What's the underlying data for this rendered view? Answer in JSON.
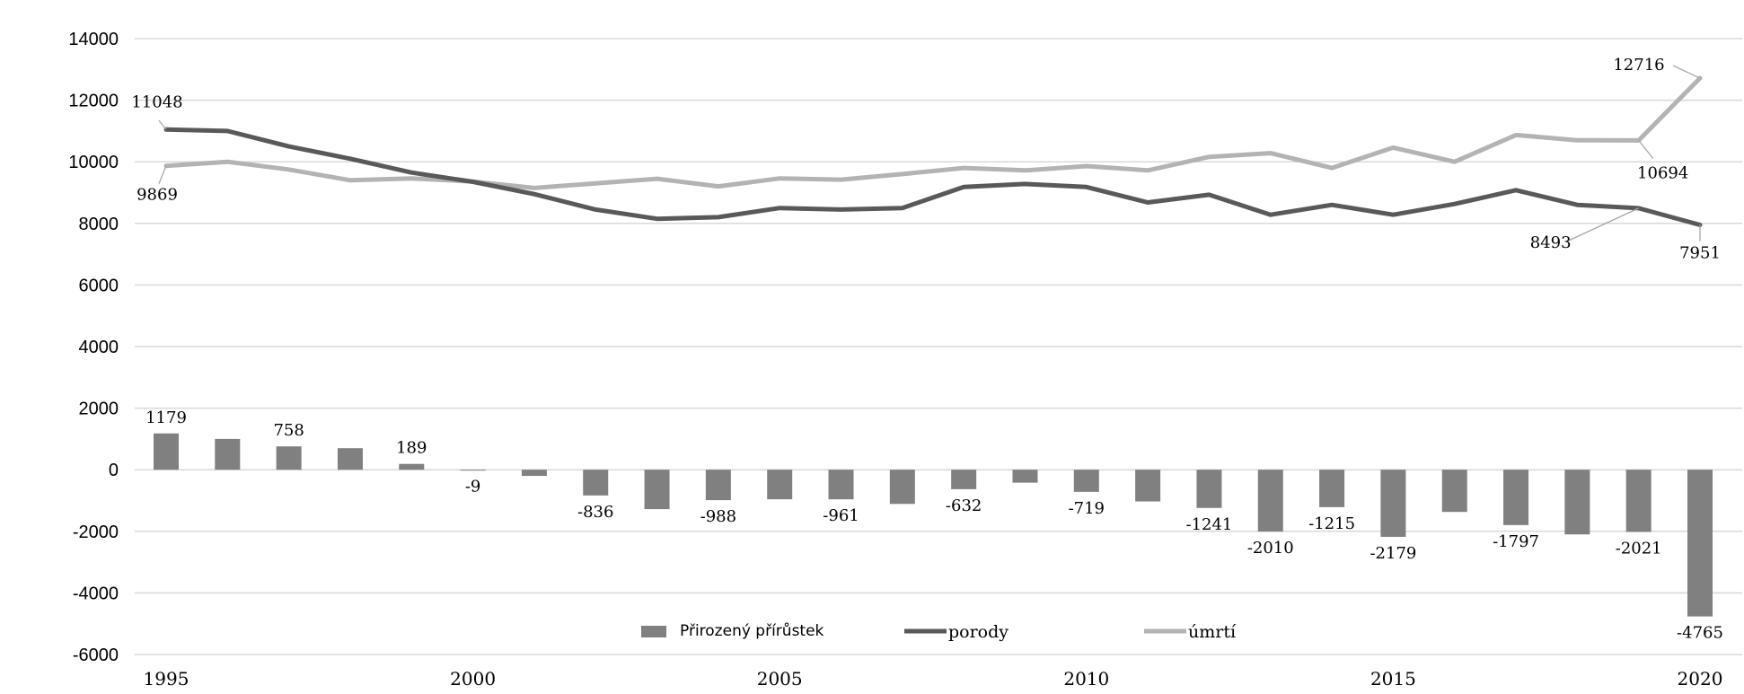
{
  "chart_data": {
    "type": "bar",
    "x": [
      1995,
      1996,
      1997,
      1998,
      1999,
      2000,
      2001,
      2002,
      2003,
      2004,
      2005,
      2006,
      2007,
      2008,
      2009,
      2010,
      2011,
      2012,
      2013,
      2014,
      2015,
      2016,
      2017,
      2018,
      2019,
      2020
    ],
    "x_tick_labels": [
      "1995",
      "2000",
      "2005",
      "2010",
      "2015",
      "2020"
    ],
    "ylim": [
      -6000,
      14000
    ],
    "y_ticks": [
      "14000",
      "12000",
      "10000",
      "8000",
      "6000",
      "4000",
      "2000",
      "0",
      "-2000",
      "-4000",
      "-6000"
    ],
    "grid": true,
    "legend_position": "bottom-center",
    "series": [
      {
        "name": "Přirozený přírůstek",
        "type": "bar",
        "color": "#808080",
        "values": [
          1179,
          1000,
          758,
          700,
          189,
          -9,
          -200,
          -836,
          -1280,
          -988,
          -960,
          -961,
          -1110,
          -632,
          -420,
          -719,
          -1030,
          -1241,
          -2010,
          -1215,
          -2179,
          -1370,
          -1797,
          -2100,
          -2021,
          -4765
        ],
        "data_labels": {
          "1995": "1179",
          "1997": "758",
          "1999": "189",
          "2000": "-9",
          "2002": "-836",
          "2004": "-988",
          "2006": "-961",
          "2008": "-632",
          "2010": "-719",
          "2012": "-1241",
          "2013": "-2010",
          "2014": "-1215",
          "2015": "-2179",
          "2017": "-1797",
          "2019": "-2021",
          "2020": "-4765"
        }
      },
      {
        "name": "porody",
        "type": "line",
        "color": "#595959",
        "values": [
          11048,
          11000,
          10500,
          10100,
          9650,
          9350,
          8950,
          8450,
          8150,
          8200,
          8500,
          8450,
          8500,
          9180,
          9280,
          9180,
          8680,
          8930,
          8280,
          8600,
          8280,
          8630,
          9080,
          8600,
          8493,
          7951
        ],
        "data_labels": {
          "1995": "11048",
          "2019": "8493",
          "2020": "7951"
        }
      },
      {
        "name": "úmrtí",
        "type": "line",
        "color": "#b3b3b3",
        "values": [
          9869,
          10000,
          9750,
          9400,
          9460,
          9360,
          9150,
          9300,
          9450,
          9200,
          9460,
          9420,
          9600,
          9800,
          9720,
          9860,
          9720,
          10160,
          10280,
          9800,
          10460,
          10000,
          10870,
          10700,
          10694,
          12716
        ],
        "data_labels": {
          "1995": "9869",
          "2019": "10694",
          "2020": "12716"
        }
      }
    ]
  }
}
